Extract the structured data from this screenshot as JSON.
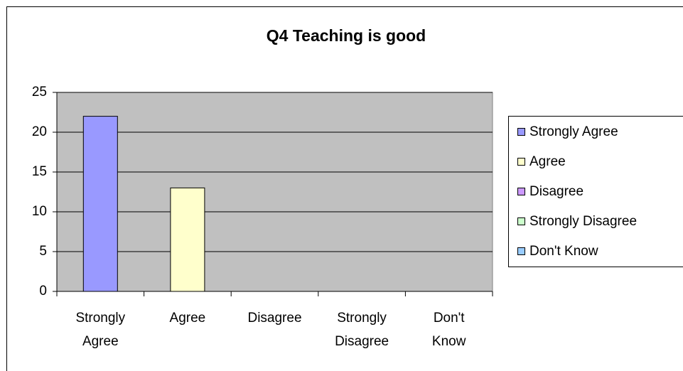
{
  "chart_data": {
    "type": "bar",
    "title": "Q4 Teaching is good",
    "categories": [
      "Strongly Agree",
      "Agree",
      "Disagree",
      "Strongly Disagree",
      "Don't Know"
    ],
    "values": [
      22,
      13,
      0,
      0,
      0
    ],
    "colors": [
      "#9999ff",
      "#ffffcc",
      "#cc99ff",
      "#ccffcc",
      "#99ccff"
    ],
    "ylim": [
      0,
      25
    ],
    "yticks": [
      0,
      5,
      10,
      15,
      20,
      25
    ],
    "grid": true,
    "legend": "right"
  }
}
